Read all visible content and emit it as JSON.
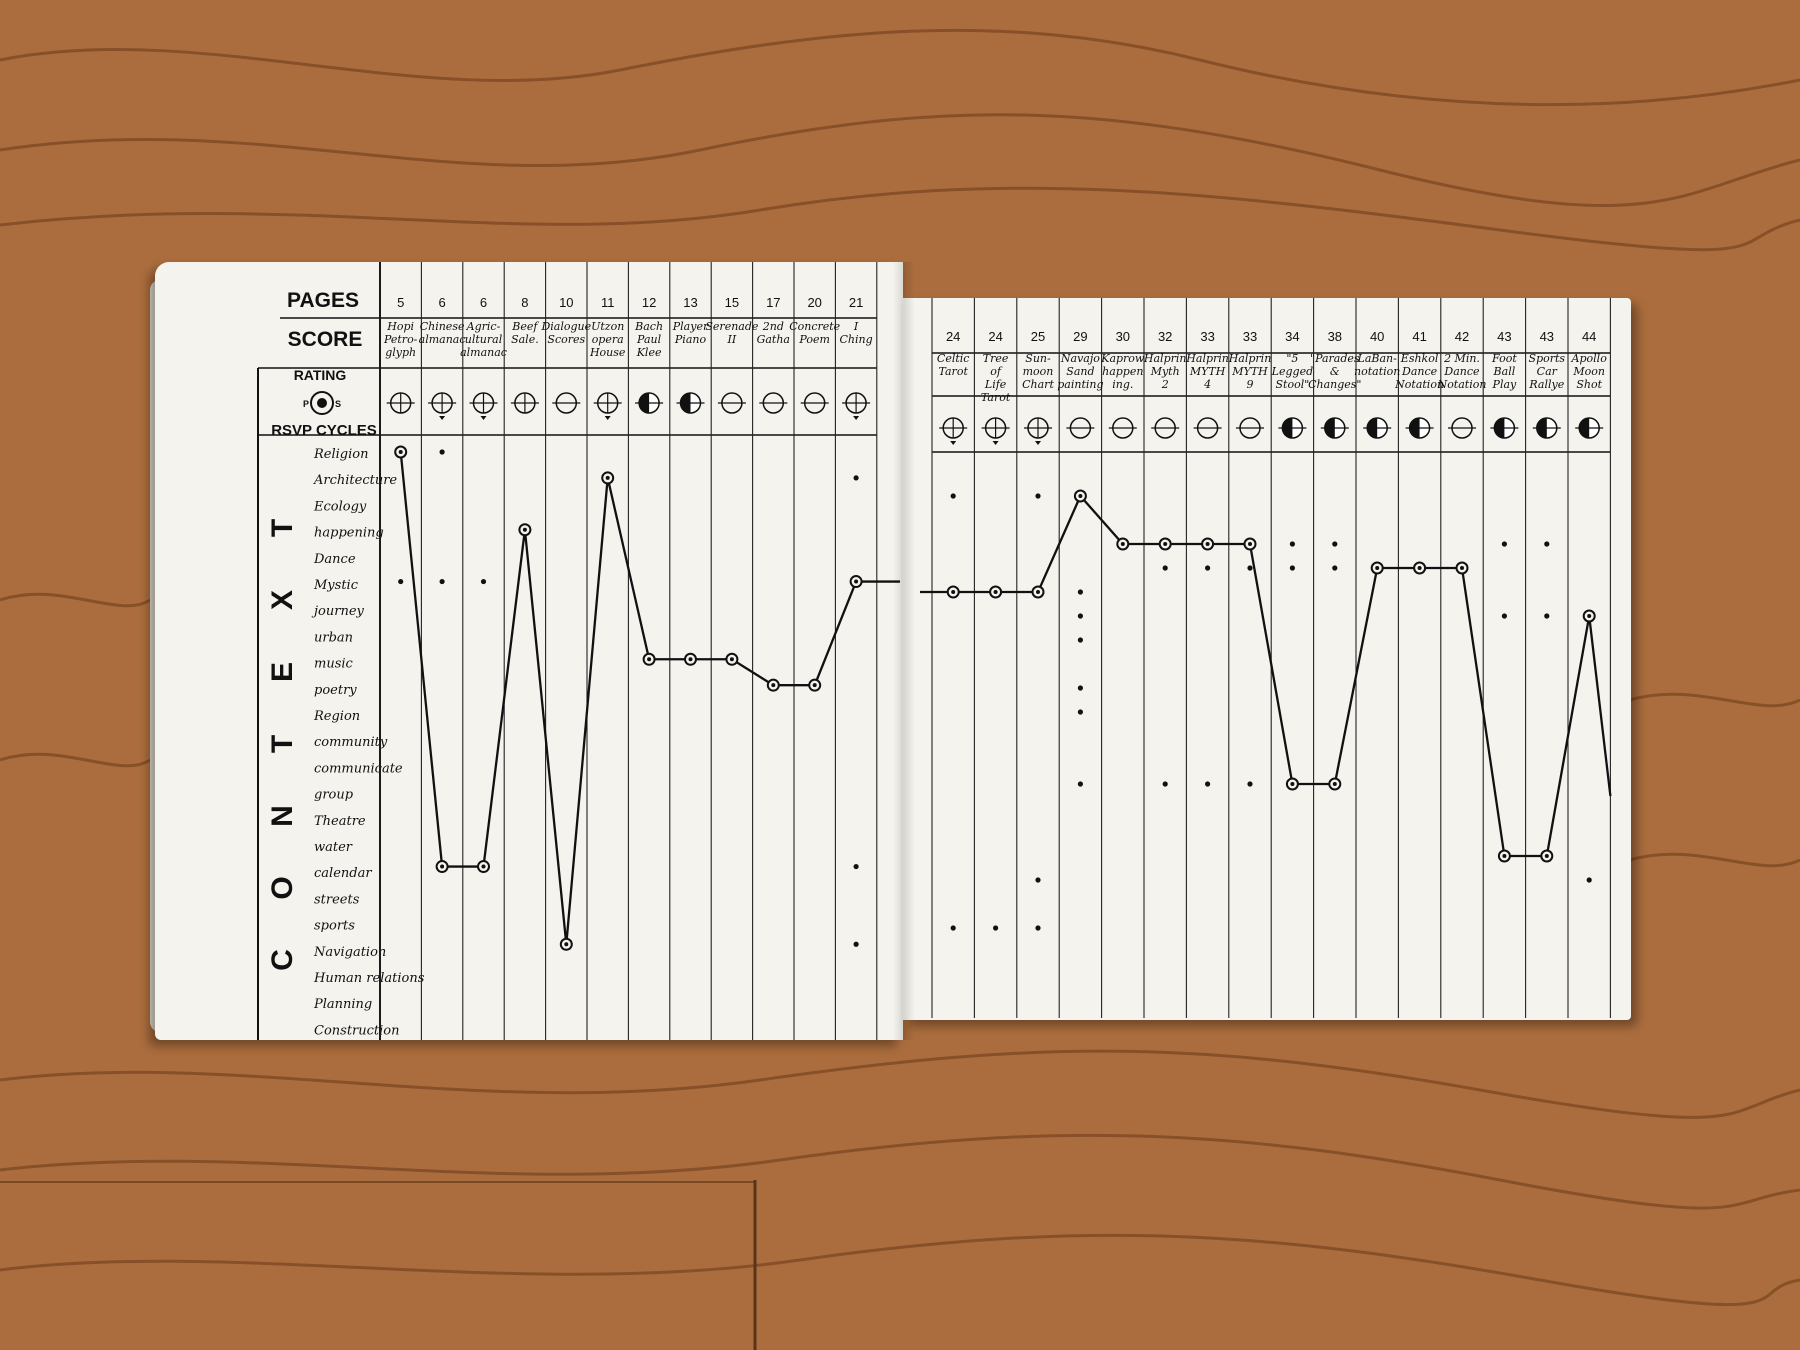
{
  "colors": {
    "wood": "#a8683a",
    "wood_dark": "#5a3416",
    "paper": "#f5f3ee",
    "ink": "#111111"
  },
  "headers": {
    "pages": "PAGES",
    "score": "SCORE",
    "rating": "RATING",
    "rsvp": "RSVP CYCLES",
    "context": "CONTEXT"
  },
  "rating_legend": {
    "left": "P",
    "right": "S"
  },
  "contexts": [
    "Religion",
    "Architecture",
    "Ecology",
    "happening",
    "Dance",
    "Mystic",
    "journey",
    "urban",
    "music",
    "poetry",
    "Region",
    "community",
    "communicate",
    "group",
    "Theatre",
    "water",
    "calendar",
    "streets",
    "sports",
    "Navigation",
    "Human relations",
    "Planning",
    "Construction"
  ],
  "chart_data": {
    "type": "line",
    "title": "",
    "xlabel": "SCORE",
    "ylabel": "CONTEXT",
    "y_categories": [
      "Religion",
      "Architecture",
      "Ecology",
      "happening",
      "Dance",
      "Mystic",
      "journey",
      "urban",
      "music",
      "poetry",
      "Region",
      "community",
      "communicate",
      "group",
      "Theatre",
      "water",
      "calendar",
      "streets",
      "sports",
      "Navigation",
      "Human relations",
      "Planning",
      "Construction"
    ],
    "columns": [
      {
        "page": "5",
        "score": [
          "Hopi",
          "Petro-",
          "glyph"
        ],
        "rating": "cross",
        "context": "Religion",
        "extra": [
          "Mystic"
        ]
      },
      {
        "page": "6",
        "score": [
          "Chinese",
          "almanac"
        ],
        "rating": "full",
        "context": "calendar",
        "extra": [
          "Religion",
          "Mystic"
        ]
      },
      {
        "page": "6",
        "score": [
          "Agric-",
          "ultural",
          "almanac"
        ],
        "rating": "full",
        "context": "calendar",
        "extra": [
          "Mystic"
        ]
      },
      {
        "page": "8",
        "score": [
          "Beef",
          "Sale."
        ],
        "rating": "cross",
        "context": "happening",
        "extra": []
      },
      {
        "page": "10",
        "score": [
          "Dialogue",
          "Scores"
        ],
        "rating": "line",
        "context": "Navigation",
        "extra": []
      },
      {
        "page": "11",
        "score": [
          "Utzon",
          "opera",
          "House"
        ],
        "rating": "full",
        "context": "Architecture",
        "extra": []
      },
      {
        "page": "12",
        "score": [
          "Bach",
          "Paul",
          "Klee"
        ],
        "rating": "dark",
        "context": "music",
        "extra": []
      },
      {
        "page": "13",
        "score": [
          "Player",
          "Piano"
        ],
        "rating": "dark",
        "context": "music",
        "extra": []
      },
      {
        "page": "15",
        "score": [
          "Serenade",
          "II"
        ],
        "rating": "line",
        "context": "music",
        "extra": []
      },
      {
        "page": "17",
        "score": [
          "2nd",
          "Gatha"
        ],
        "rating": "line",
        "context": "poetry",
        "extra": []
      },
      {
        "page": "20",
        "score": [
          "Concrete",
          "Poem"
        ],
        "rating": "line",
        "context": "poetry",
        "extra": []
      },
      {
        "page": "21",
        "score": [
          "I",
          "Ching"
        ],
        "rating": "full",
        "context": "Mystic",
        "extra": [
          "Architecture",
          "calendar",
          "Navigation"
        ]
      },
      {
        "page": "24",
        "score": [
          "Celtic",
          "Tarot"
        ],
        "rating": "arrow",
        "context": "Mystic",
        "extra": [
          "Architecture",
          "Navigation"
        ]
      },
      {
        "page": "24",
        "score": [
          "Tree",
          "of",
          "Life",
          "Tarot"
        ],
        "rating": "arrow",
        "context": "Mystic",
        "extra": [
          "Navigation"
        ]
      },
      {
        "page": "25",
        "score": [
          "Sun-",
          "moon",
          "Chart"
        ],
        "rating": "full",
        "context": "Mystic",
        "extra": [
          "Architecture",
          "streets",
          "Navigation"
        ]
      },
      {
        "page": "29",
        "score": [
          "Navajo",
          "Sand",
          "painting"
        ],
        "rating": "line",
        "context": "Architecture",
        "extra": [
          "Mystic",
          "journey",
          "urban",
          "poetry",
          "Region",
          "group"
        ]
      },
      {
        "page": "30",
        "score": [
          "Kaprow",
          "happen",
          "ing."
        ],
        "rating": "line",
        "context": "happening",
        "extra": []
      },
      {
        "page": "32",
        "score": [
          "Halprin",
          "Myth",
          "2"
        ],
        "rating": "line",
        "context": "happening",
        "extra": [
          "Dance",
          "group"
        ]
      },
      {
        "page": "33",
        "score": [
          "Halprin",
          "MYTH",
          "4"
        ],
        "rating": "line",
        "context": "happening",
        "extra": [
          "Dance",
          "group"
        ]
      },
      {
        "page": "33",
        "score": [
          "Halprin",
          "MYTH",
          "9"
        ],
        "rating": "line",
        "context": "happening",
        "extra": [
          "Dance",
          "group"
        ]
      },
      {
        "page": "34",
        "score": [
          "\"5",
          "Legged",
          "Stool\""
        ],
        "rating": "dark",
        "context": "group",
        "extra": [
          "happening",
          "Dance"
        ]
      },
      {
        "page": "38",
        "score": [
          "\"Parades",
          "&",
          "Changes\""
        ],
        "rating": "dark",
        "context": "group",
        "extra": [
          "happening",
          "Dance"
        ]
      },
      {
        "page": "40",
        "score": [
          "LaBan-",
          "notation"
        ],
        "rating": "dark",
        "context": "Dance",
        "extra": []
      },
      {
        "page": "41",
        "score": [
          "Eshkol",
          "Dance",
          "Notation"
        ],
        "rating": "dark",
        "context": "Dance",
        "extra": []
      },
      {
        "page": "42",
        "score": [
          "2 Min.",
          "Dance",
          "Notation"
        ],
        "rating": "line",
        "context": "Dance",
        "extra": []
      },
      {
        "page": "43",
        "score": [
          "Foot",
          "Ball",
          "Play"
        ],
        "rating": "dark",
        "context": "calendar",
        "extra": [
          "happening",
          "journey"
        ]
      },
      {
        "page": "43",
        "score": [
          "Sports",
          "Car",
          "Rallye"
        ],
        "rating": "dark",
        "context": "calendar",
        "extra": [
          "happening",
          "journey"
        ]
      },
      {
        "page": "44",
        "score": [
          "Apollo",
          "Moon",
          "Shot"
        ],
        "rating": "dark",
        "context": "journey",
        "extra": [
          "streets"
        ]
      }
    ]
  }
}
